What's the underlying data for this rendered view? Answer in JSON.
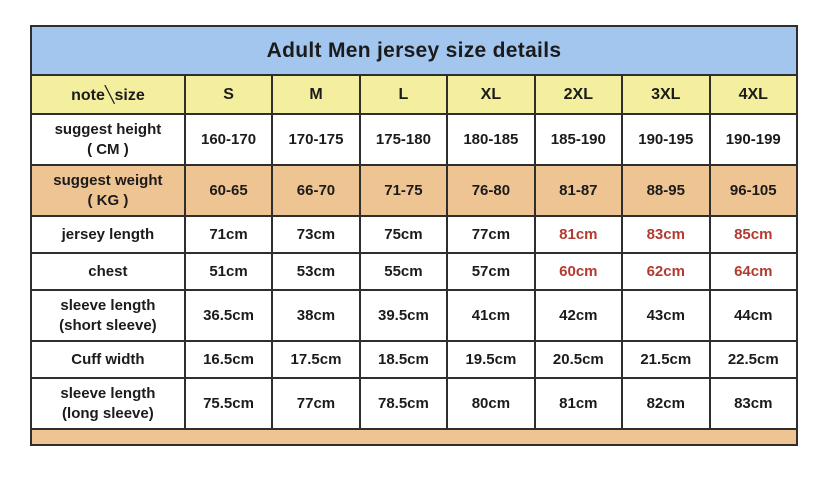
{
  "title": "Adult Men jersey size details",
  "colors": {
    "title_bg": "#a3c6ef",
    "header_bg": "#f4ef9e",
    "weight_bg": "#efc493",
    "row_bg_white": "#ffffff",
    "red_text": "#b23b31",
    "black_text": "#1b1b1b",
    "border": "#2e2e2e"
  },
  "table": {
    "corner_label": "note╲size",
    "columns": [
      "S",
      "M",
      "L",
      "XL",
      "2XL",
      "3XL",
      "4XL"
    ],
    "rows": [
      {
        "label_lines": [
          "suggest height",
          "( CM )"
        ],
        "values": [
          "160-170",
          "170-175",
          "175-180",
          "180-185",
          "185-190",
          "190-195",
          "190-199"
        ],
        "bg": "#ffffff",
        "red_indices": []
      },
      {
        "label_lines": [
          "suggest weight",
          "( KG )"
        ],
        "values": [
          "60-65",
          "66-70",
          "71-75",
          "76-80",
          "81-87",
          "88-95",
          "96-105"
        ],
        "bg": "#efc493",
        "red_indices": []
      },
      {
        "label_lines": [
          "jersey length"
        ],
        "values": [
          "71cm",
          "73cm",
          "75cm",
          "77cm",
          "81cm",
          "83cm",
          "85cm"
        ],
        "bg": "#ffffff",
        "red_indices": [
          4,
          5,
          6
        ]
      },
      {
        "label_lines": [
          "chest"
        ],
        "values": [
          "51cm",
          "53cm",
          "55cm",
          "57cm",
          "60cm",
          "62cm",
          "64cm"
        ],
        "bg": "#ffffff",
        "red_indices": [
          4,
          5,
          6
        ]
      },
      {
        "label_lines": [
          "sleeve length",
          "(short sleeve)"
        ],
        "values": [
          "36.5cm",
          "38cm",
          "39.5cm",
          "41cm",
          "42cm",
          "43cm",
          "44cm"
        ],
        "bg": "#ffffff",
        "red_indices": []
      },
      {
        "label_lines": [
          "Cuff width"
        ],
        "values": [
          "16.5cm",
          "17.5cm",
          "18.5cm",
          "19.5cm",
          "20.5cm",
          "21.5cm",
          "22.5cm"
        ],
        "bg": "#ffffff",
        "red_indices": []
      },
      {
        "label_lines": [
          "sleeve length",
          "(long sleeve)"
        ],
        "values": [
          "75.5cm",
          "77cm",
          "78.5cm",
          "80cm",
          "81cm",
          "82cm",
          "83cm"
        ],
        "bg": "#ffffff",
        "red_indices": []
      }
    ]
  }
}
